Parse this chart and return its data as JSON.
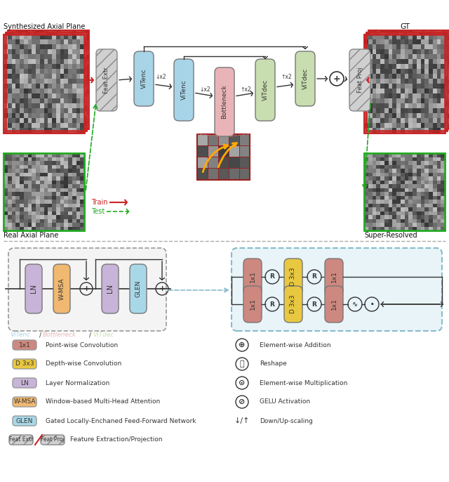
{
  "fig_width": 6.4,
  "fig_height": 6.86,
  "dpi": 100,
  "bg_color": "#ffffff",
  "colors": {
    "vitenc": "#a8d4e8",
    "bottleneck": "#e8b4b8",
    "vitdec": "#c8ddb0",
    "feat": "#d0d0d0",
    "ln": "#c8b4d8",
    "wmsa": "#f0b870",
    "glen": "#a8d8e8",
    "conv1x1": "#cd8880",
    "conv_d3x3": "#e8c840",
    "red": "#cc2222",
    "green": "#22aa22",
    "dark": "#333333",
    "gray": "#888888",
    "cyan_box": "#88bbcc",
    "cyan_fill": "#e8f4f8"
  },
  "top": {
    "synth_label": "Synthesized Axial Plane",
    "gt_label": "GT",
    "real_label": "Real Axial Plane",
    "superres_label": "Super-Resolved",
    "train_label": "Train",
    "test_label": "Test"
  },
  "legend_left": [
    {
      "label": "1x1",
      "desc": "Point-wise Convolution",
      "color": "#cd8880"
    },
    {
      "label": "D 3x3",
      "desc": "Depth-wise Convolution",
      "color": "#e8c840"
    },
    {
      "label": "LN",
      "desc": "Layer Normalization",
      "color": "#c8b4d8"
    },
    {
      "label": "W-MSA",
      "desc": "Window-based Multi-Head Attention",
      "color": "#f0b870"
    },
    {
      "label": "GLEN",
      "desc": "Gated Locally-Enchaned Feed-Forward Network",
      "color": "#a8d8e8"
    }
  ],
  "legend_right": [
    {
      "symbol": "⊕",
      "desc": "Element-wise Addition"
    },
    {
      "symbol": "Ⓡ",
      "desc": "Reshape"
    },
    {
      "symbol": "⊙",
      "desc": "Element-wise Multiplication"
    },
    {
      "symbol": "⊘",
      "desc": "GELU Activation"
    },
    {
      "symbol": "↓/↑",
      "desc": "Down/Up-scaling"
    }
  ]
}
